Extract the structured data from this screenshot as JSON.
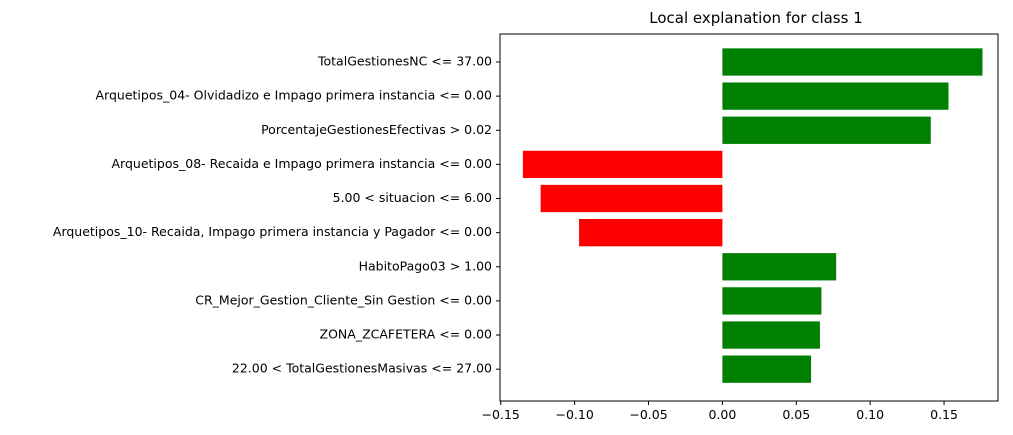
{
  "chart_data": {
    "type": "bar",
    "orientation": "horizontal",
    "title": "Local explanation for class 1",
    "xlabel": "",
    "ylabel": "",
    "grid": false,
    "xlim": [
      -0.1505,
      0.1865
    ],
    "xticks": [
      -0.15,
      -0.1,
      -0.05,
      0.0,
      0.05,
      0.1,
      0.15
    ],
    "xtick_labels": [
      "−0.15",
      "−0.10",
      "−0.05",
      "0.00",
      "0.05",
      "0.10",
      "0.15"
    ],
    "categories": [
      "TotalGestionesNC <= 37.00",
      "Arquetipos_04- Olvidadizo e Impago primera instancia <= 0.00",
      "PorcentajeGestionesEfectivas > 0.02",
      "Arquetipos_08- Recaida e Impago primera instancia <= 0.00",
      "5.00 < situacion <= 6.00",
      "Arquetipos_10- Recaida, Impago primera instancia y Pagador <= 0.00",
      "HabitoPago03 > 1.00",
      "CR_Mejor_Gestion_Cliente_Sin Gestion <= 0.00",
      "ZONA_ZCAFETERA <= 0.00",
      "22.00 < TotalGestionesMasivas <= 27.00"
    ],
    "values": [
      0.176,
      0.153,
      0.141,
      -0.135,
      -0.123,
      -0.097,
      0.077,
      0.067,
      0.066,
      0.06
    ],
    "colors": {
      "positive": "#008000",
      "negative": "#ff0000"
    }
  }
}
